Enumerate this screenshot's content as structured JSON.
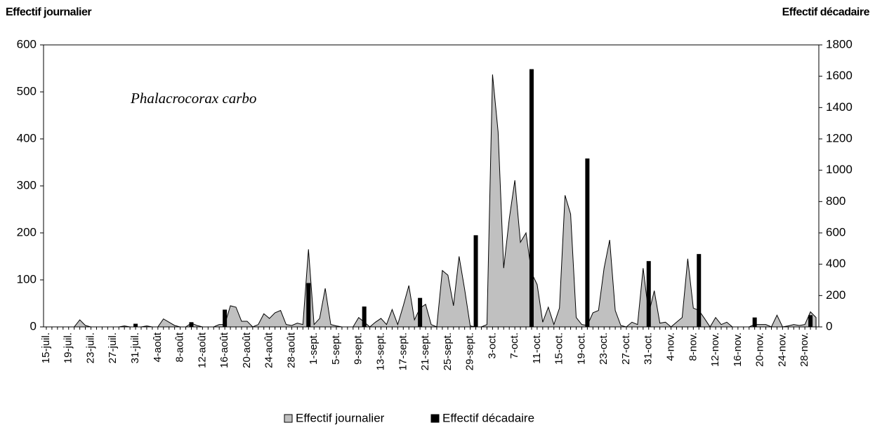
{
  "chart_data": {
    "type": "area-bar",
    "y_label": "Effectif journalier",
    "y2_label": "Effectif décadaire",
    "annotation": "Phalacrocorax carbo",
    "categories": [
      "15-juil.",
      null,
      null,
      null,
      "19-juil.",
      null,
      null,
      null,
      "23-juil.",
      null,
      null,
      null,
      "27-juil.",
      null,
      null,
      null,
      "31-juil.",
      null,
      null,
      null,
      "4-août",
      null,
      null,
      null,
      "8-août",
      null,
      null,
      null,
      "12-août",
      null,
      null,
      null,
      "16-août",
      null,
      null,
      null,
      "20-août",
      null,
      null,
      null,
      "24-août",
      null,
      null,
      null,
      "28-août",
      null,
      null,
      null,
      "1-sept.",
      null,
      null,
      null,
      "5-sept.",
      null,
      null,
      null,
      "9-sept.",
      null,
      null,
      null,
      "13-sept.",
      null,
      null,
      null,
      "17-sept.",
      null,
      null,
      null,
      "21-sept.",
      null,
      null,
      null,
      "25-sept.",
      null,
      null,
      null,
      "29-sept.",
      null,
      null,
      null,
      "3-oct.",
      null,
      null,
      null,
      "7-oct.",
      null,
      null,
      null,
      "11-oct.",
      null,
      null,
      null,
      "15-oct.",
      null,
      null,
      null,
      "19-oct.",
      null,
      null,
      null,
      "23-oct.",
      null,
      null,
      null,
      "27-oct.",
      null,
      null,
      null,
      "31-oct.",
      null,
      null,
      null,
      "4-nov.",
      null,
      null,
      null,
      "8-nov.",
      null,
      null,
      null,
      "12-nov.",
      null,
      null,
      null,
      "16-nov.",
      null,
      null,
      null,
      "20-nov.",
      null,
      null,
      null,
      "24-nov.",
      null,
      null,
      null,
      "28-nov.",
      null,
      null
    ],
    "series": [
      {
        "name": "Effectif journalier",
        "type": "area",
        "axis": "y",
        "color": "#c0c0c0",
        "values": [
          0,
          0,
          0,
          0,
          0,
          0,
          15,
          3,
          0,
          0,
          0,
          0,
          0,
          0,
          2,
          0,
          0,
          0,
          2,
          0,
          0,
          17,
          10,
          3,
          0,
          0,
          8,
          3,
          0,
          0,
          0,
          5,
          5,
          45,
          42,
          12,
          12,
          0,
          5,
          28,
          18,
          30,
          35,
          5,
          3,
          8,
          5,
          165,
          5,
          18,
          82,
          5,
          2,
          0,
          0,
          0,
          20,
          10,
          0,
          10,
          18,
          5,
          37,
          5,
          45,
          88,
          15,
          40,
          48,
          5,
          0,
          120,
          110,
          45,
          150,
          80,
          2,
          0,
          0,
          5,
          537,
          415,
          125,
          230,
          312,
          180,
          200,
          115,
          90,
          10,
          42,
          5,
          40,
          280,
          240,
          20,
          5,
          3,
          30,
          35,
          125,
          185,
          35,
          3,
          0,
          10,
          5,
          125,
          28,
          77,
          8,
          10,
          0,
          10,
          20,
          145,
          40,
          35,
          18,
          0,
          20,
          5,
          10,
          0,
          0,
          0,
          0,
          5,
          5,
          5,
          0,
          25,
          0,
          2,
          5,
          3,
          5,
          32,
          20
        ]
      },
      {
        "name": "Effectif décadaire",
        "type": "bar",
        "axis": "y2",
        "color": "#000000",
        "values": [
          null,
          null,
          null,
          null,
          null,
          null,
          null,
          null,
          null,
          null,
          null,
          null,
          null,
          null,
          null,
          null,
          20,
          null,
          null,
          null,
          null,
          null,
          null,
          null,
          null,
          null,
          30,
          null,
          null,
          null,
          null,
          null,
          110,
          null,
          null,
          null,
          null,
          null,
          null,
          null,
          null,
          null,
          null,
          null,
          null,
          null,
          null,
          280,
          null,
          null,
          null,
          null,
          null,
          null,
          null,
          null,
          null,
          130,
          null,
          null,
          null,
          null,
          null,
          null,
          null,
          null,
          null,
          185,
          null,
          null,
          null,
          null,
          null,
          null,
          null,
          null,
          null,
          585,
          null,
          null,
          null,
          null,
          null,
          null,
          null,
          null,
          null,
          1645,
          null,
          null,
          null,
          null,
          null,
          null,
          null,
          null,
          null,
          1075,
          null,
          null,
          null,
          null,
          null,
          null,
          null,
          null,
          null,
          null,
          420,
          null,
          null,
          null,
          null,
          null,
          null,
          null,
          null,
          465,
          null,
          null,
          null,
          null,
          null,
          null,
          null,
          null,
          null,
          60,
          null,
          null,
          null,
          null,
          null,
          null,
          null,
          null,
          null,
          75,
          null
        ]
      }
    ],
    "ylim": [
      0,
      600
    ],
    "yticks": [
      0,
      100,
      200,
      300,
      400,
      500,
      600
    ],
    "y2lim": [
      0,
      1800
    ],
    "y2ticks": [
      0,
      200,
      400,
      600,
      800,
      1000,
      1200,
      1400,
      1600,
      1800
    ],
    "grid": false,
    "legend": "bottom"
  }
}
